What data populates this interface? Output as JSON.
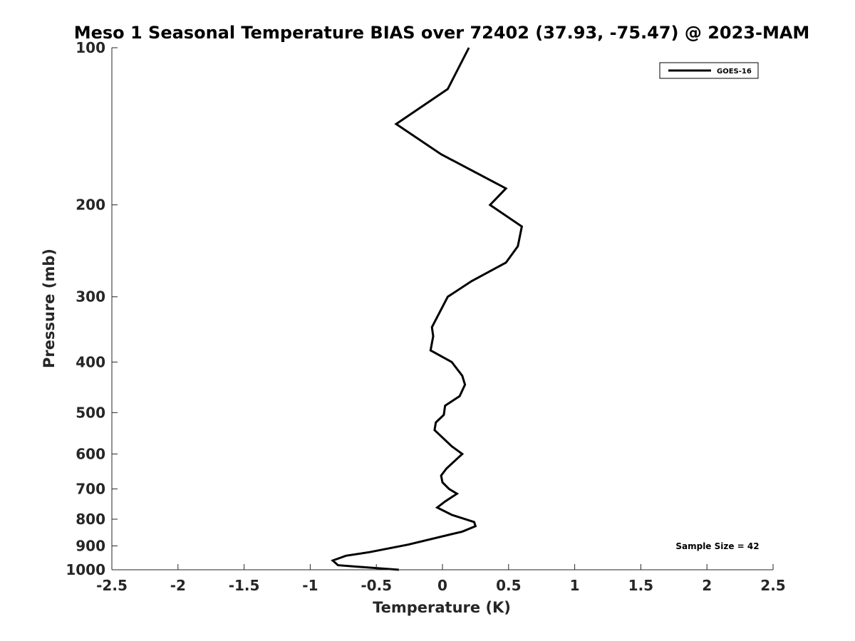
{
  "chart_data": {
    "type": "line",
    "title": "Meso 1 Seasonal Temperature BIAS over 72402 (37.93, -75.47) @ 2023-MAM",
    "xlabel": "Temperature (K)",
    "ylabel": "Pressure (mb)",
    "xlim": [
      -2.5,
      2.5
    ],
    "ylim": [
      1000,
      100
    ],
    "yscale": "log",
    "y_reversed": true,
    "grid": false,
    "legend_position": "top-right",
    "x_ticks": [
      -2.5,
      -2,
      -1.5,
      -1,
      -0.5,
      0,
      0.5,
      1,
      1.5,
      2,
      2.5
    ],
    "x_tick_labels": [
      "-2.5",
      "-2",
      "-1.5",
      "-1",
      "-0.5",
      "0",
      "0.5",
      "1",
      "1.5",
      "2",
      "2.5"
    ],
    "y_ticks": [
      100,
      200,
      300,
      400,
      500,
      600,
      700,
      800,
      900,
      1000
    ],
    "y_tick_labels": [
      "100",
      "200",
      "300",
      "400",
      "500",
      "600",
      "700",
      "800",
      "900",
      "1000"
    ],
    "series": [
      {
        "name": "GOES-16",
        "color": "#000000",
        "points": [
          {
            "x": 0.2,
            "y": 100
          },
          {
            "x": 0.04,
            "y": 120
          },
          {
            "x": -0.35,
            "y": 140
          },
          {
            "x": -0.01,
            "y": 160
          },
          {
            "x": 0.48,
            "y": 186
          },
          {
            "x": 0.36,
            "y": 200
          },
          {
            "x": 0.6,
            "y": 220
          },
          {
            "x": 0.57,
            "y": 240
          },
          {
            "x": 0.48,
            "y": 258
          },
          {
            "x": 0.22,
            "y": 280
          },
          {
            "x": 0.04,
            "y": 300
          },
          {
            "x": -0.08,
            "y": 343
          },
          {
            "x": -0.07,
            "y": 357
          },
          {
            "x": -0.09,
            "y": 380
          },
          {
            "x": 0.07,
            "y": 400
          },
          {
            "x": 0.15,
            "y": 425
          },
          {
            "x": 0.17,
            "y": 442
          },
          {
            "x": 0.13,
            "y": 465
          },
          {
            "x": 0.02,
            "y": 485
          },
          {
            "x": 0.01,
            "y": 505
          },
          {
            "x": -0.05,
            "y": 522
          },
          {
            "x": -0.06,
            "y": 540
          },
          {
            "x": 0.07,
            "y": 580
          },
          {
            "x": 0.15,
            "y": 600
          },
          {
            "x": 0.03,
            "y": 640
          },
          {
            "x": -0.01,
            "y": 660
          },
          {
            "x": 0.0,
            "y": 680
          },
          {
            "x": 0.05,
            "y": 700
          },
          {
            "x": 0.11,
            "y": 715
          },
          {
            "x": 0.02,
            "y": 740
          },
          {
            "x": -0.04,
            "y": 760
          },
          {
            "x": 0.07,
            "y": 785
          },
          {
            "x": 0.24,
            "y": 810
          },
          {
            "x": 0.25,
            "y": 825
          },
          {
            "x": 0.15,
            "y": 845
          },
          {
            "x": -0.26,
            "y": 895
          },
          {
            "x": -0.55,
            "y": 925
          },
          {
            "x": -0.73,
            "y": 940
          },
          {
            "x": -0.83,
            "y": 960
          },
          {
            "x": -0.79,
            "y": 980
          },
          {
            "x": -0.33,
            "y": 1000
          }
        ]
      }
    ],
    "annotations": [
      {
        "text": "Sample Size = 42",
        "position": "bottom-right"
      }
    ]
  }
}
